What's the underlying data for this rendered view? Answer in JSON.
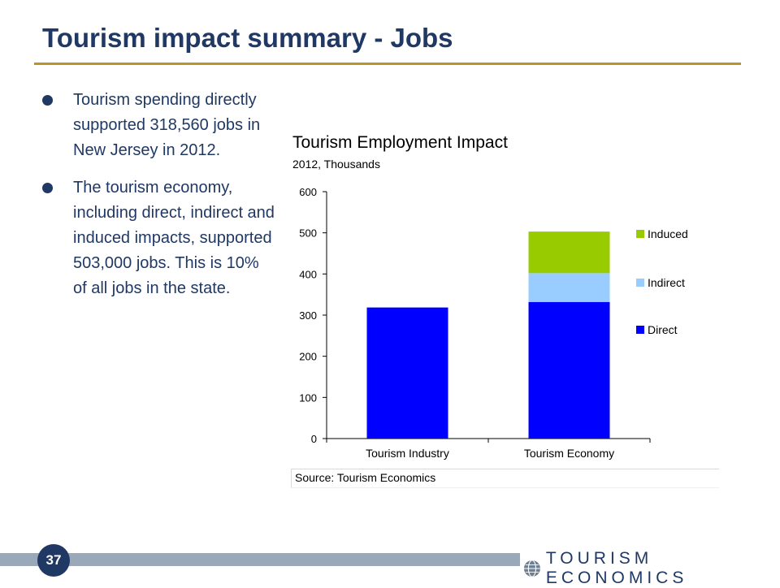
{
  "slide": {
    "title": "Tourism impact summary - Jobs",
    "bullets": [
      "Tourism spending directly supported 318,560 jobs in New Jersey in 2012.",
      "The tourism economy, including direct, indirect and induced impacts, supported 503,000 jobs. This is 10% of all jobs in the state."
    ],
    "page_number": "37",
    "brand": "TOURISM ECONOMICS",
    "colors": {
      "title": "#1f3864",
      "rule": "#b7962a",
      "footer_bar": "#9aa9b9"
    }
  },
  "chart_data": {
    "type": "bar",
    "stacked": true,
    "title": "Tourism Employment Impact",
    "subtitle": "2012, Thousands",
    "categories": [
      "Tourism Industry",
      "Tourism Economy"
    ],
    "series": [
      {
        "name": "Direct",
        "values": [
          318.56,
          332
        ],
        "color": "#0000ff"
      },
      {
        "name": "Indirect",
        "values": [
          0,
          70
        ],
        "color": "#99ccff"
      },
      {
        "name": "Induced",
        "values": [
          0,
          101
        ],
        "color": "#99cc00"
      }
    ],
    "ylim": [
      0,
      600
    ],
    "yticks": [
      0,
      100,
      200,
      300,
      400,
      500,
      600
    ],
    "legend": [
      "Induced",
      "Indirect",
      "Direct"
    ],
    "legend_position": "right",
    "grid": false,
    "source": "Source: Tourism Economics"
  }
}
